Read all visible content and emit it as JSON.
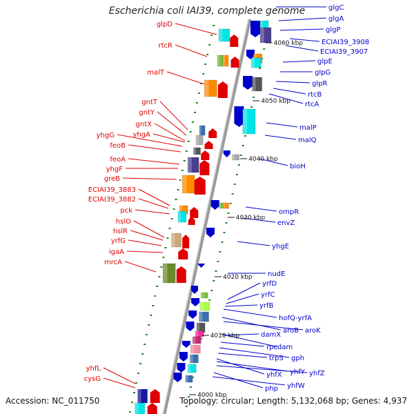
{
  "title": "Escherichia coli IAI39, complete genome",
  "footer": {
    "accession": "Accession: NC_011750",
    "summary": "Topology: circular; Length: 5,132,068 bp; Genes: 4,937"
  },
  "colors": {
    "forward": "#e00000",
    "reverse": "#0000cc",
    "axis": "#999999",
    "tick": "#1a7a1a",
    "scale_label": "#111111"
  },
  "scale_labels": [
    "4060 kbp",
    "4050 kbp",
    "4040 kbp",
    "4030 kbp",
    "4020 kbp",
    "4010 kbp",
    "4000 kbp"
  ],
  "genes_left": [
    "glpD",
    "rtcR",
    "malT",
    "gntT",
    "gntY",
    "gntX",
    "yhgG",
    "yhgA",
    "feoB",
    "feoA",
    "yhgF",
    "greB",
    "ECIAI39_3883",
    "ECIAI39_3882",
    "pck",
    "hslO",
    "hslR",
    "yrfG",
    "igaA",
    "mrcA",
    "yhfL",
    "cysG"
  ],
  "genes_right": [
    "glgC",
    "glgA",
    "glgP",
    "ECIAI39_3908",
    "ECIAI39_3907",
    "glpE",
    "glpG",
    "glpR",
    "rtcB",
    "rtcA",
    "malP",
    "malQ",
    "bioH",
    "ompR",
    "envZ",
    "yhgE",
    "nudE",
    "yrfD",
    "yrfC",
    "yrfB",
    "hofQ-yrfA",
    "aroB",
    "aroK",
    "damX",
    "dam",
    "rpe",
    "gph",
    "trpS",
    "yhfX",
    "yhfY",
    "yhfZ",
    "php",
    "yhfW"
  ]
}
